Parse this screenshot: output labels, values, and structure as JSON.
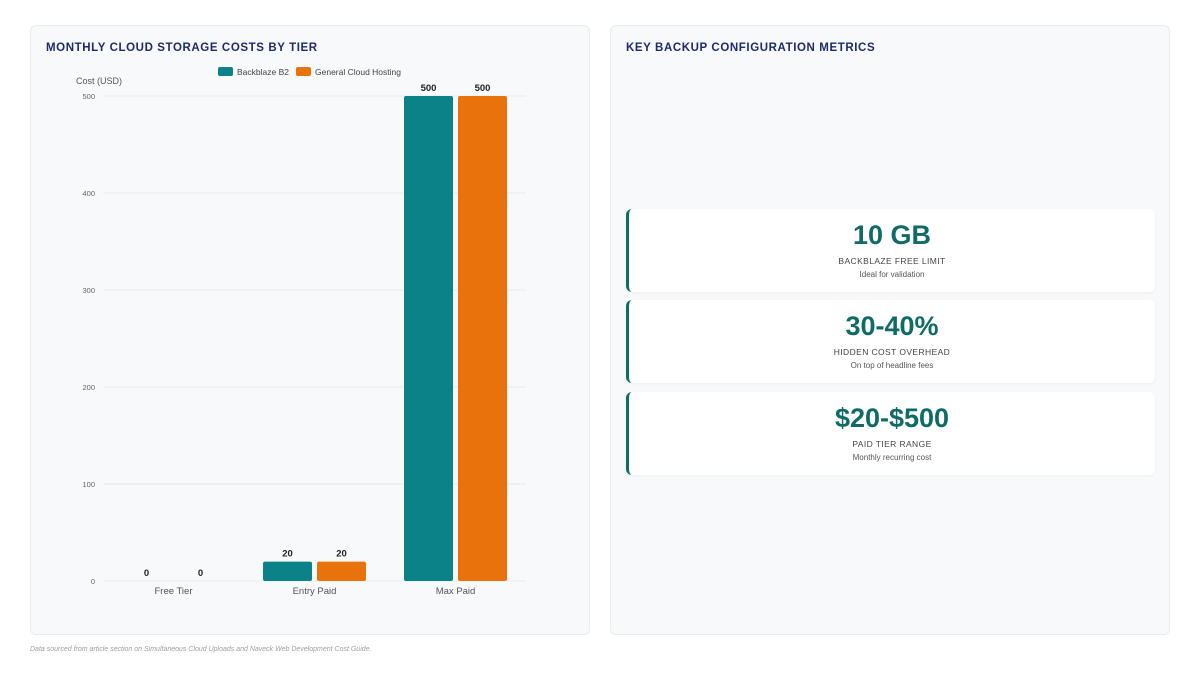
{
  "chart_panel": {
    "title": "MONTHLY CLOUD STORAGE COSTS BY TIER"
  },
  "chart_data": {
    "type": "bar",
    "categories": [
      "Free Tier",
      "Entry Paid",
      "Max Paid"
    ],
    "series": [
      {
        "name": "Backblaze B2",
        "values": [
          0,
          20,
          500
        ],
        "color": "#0b8188"
      },
      {
        "name": "General Cloud Hosting",
        "values": [
          0,
          20,
          500
        ],
        "color": "#e8730c"
      }
    ],
    "ylabel": "Cost (USD)",
    "xlabel": "",
    "ylim": [
      0,
      500
    ],
    "yticks": [
      0,
      100,
      200,
      300,
      400,
      500
    ],
    "grid": true,
    "legend": "top-center",
    "data_labels": true
  },
  "metrics_panel": {
    "title": "KEY BACKUP CONFIGURATION METRICS",
    "cards": [
      {
        "value": "10 GB",
        "label": "BACKBLAZE FREE LIMIT",
        "note": "Ideal for validation"
      },
      {
        "value": "30-40%",
        "label": "HIDDEN COST OVERHEAD",
        "note": "On top of headline fees"
      },
      {
        "value": "$20-$500",
        "label": "PAID TIER RANGE",
        "note": "Monthly recurring cost"
      }
    ]
  },
  "footnote": "Data sourced from article section on Simultaneous Cloud Uploads and Naveck Web Development Cost Guide."
}
